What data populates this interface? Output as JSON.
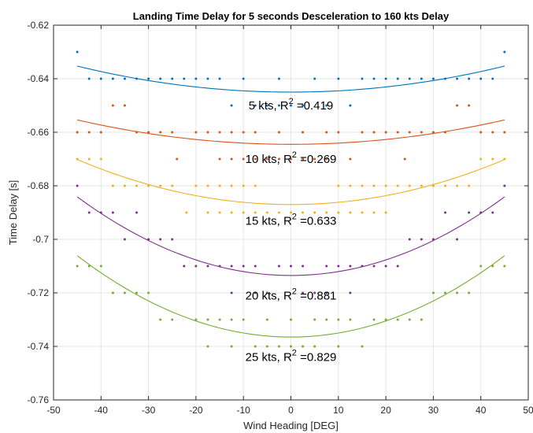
{
  "chart_data": {
    "type": "scatter",
    "title": "Landing Time Delay for 5 seconds Desceleration to 160 kts Delay",
    "xlabel": "Wind Heading [DEG]",
    "ylabel": "Time Delay [s]",
    "xlim": [
      -50,
      50
    ],
    "ylim": [
      -0.76,
      -0.62
    ],
    "xticks": [
      -50,
      -40,
      -30,
      -20,
      -10,
      0,
      10,
      20,
      30,
      40,
      50
    ],
    "xtick_labels": [
      "-50",
      "-40",
      "-30",
      "-20",
      "-10",
      "0",
      "10",
      "20",
      "30",
      "40",
      "50"
    ],
    "yticks": [
      -0.62,
      -0.64,
      -0.66,
      -0.68,
      -0.7,
      -0.72,
      -0.74,
      -0.76
    ],
    "ytick_labels": [
      "-0.62",
      "-0.64",
      "-0.66",
      "-0.68",
      "-0.7",
      "-0.72",
      "-0.74",
      "-0.76"
    ],
    "grid": true,
    "series": [
      {
        "color": "#0072BD",
        "fit": {
          "a": 4.8e-06,
          "b": 0,
          "c": -0.645,
          "xrange": [
            -45,
            45
          ]
        },
        "annotation": {
          "text": "5 kts, R",
          "sup": "2",
          "rest": " =0.419",
          "x": 0,
          "y": -0.6515
        },
        "points": [
          [
            -45,
            -0.63
          ],
          [
            45,
            -0.63
          ],
          [
            -42.5,
            -0.64
          ],
          [
            -40,
            -0.64
          ],
          [
            -37.5,
            -0.64
          ],
          [
            -35,
            -0.64
          ],
          [
            -32.5,
            -0.64
          ],
          [
            -30,
            -0.64
          ],
          [
            -27.5,
            -0.64
          ],
          [
            -25,
            -0.64
          ],
          [
            -22.5,
            -0.64
          ],
          [
            -20,
            -0.64
          ],
          [
            -17.5,
            -0.64
          ],
          [
            -15,
            -0.64
          ],
          [
            -10,
            -0.64
          ],
          [
            -2.5,
            -0.64
          ],
          [
            10,
            -0.64
          ],
          [
            15,
            -0.64
          ],
          [
            17.5,
            -0.64
          ],
          [
            20,
            -0.64
          ],
          [
            22.5,
            -0.64
          ],
          [
            25,
            -0.64
          ],
          [
            27.5,
            -0.64
          ],
          [
            30,
            -0.64
          ],
          [
            32.5,
            -0.64
          ],
          [
            35,
            -0.64
          ],
          [
            37.5,
            -0.64
          ],
          [
            40,
            -0.64
          ],
          [
            42.5,
            -0.64
          ],
          [
            5,
            -0.64
          ],
          [
            -12.5,
            -0.65
          ],
          [
            -7.5,
            -0.65
          ],
          [
            -5,
            -0.65
          ],
          [
            -2.5,
            -0.65
          ],
          [
            0,
            -0.65
          ],
          [
            2.5,
            -0.65
          ],
          [
            7.5,
            -0.65
          ],
          [
            12.5,
            -0.65
          ]
        ]
      },
      {
        "color": "#D95319",
        "fit": {
          "a": 4.5e-06,
          "b": 0,
          "c": -0.6645,
          "xrange": [
            -45,
            45
          ]
        },
        "annotation": {
          "text": "10 kts, R",
          "sup": "2",
          "rest": " =0.269",
          "x": 0,
          "y": -0.6715
        },
        "points": [
          [
            -37.5,
            -0.65
          ],
          [
            -35,
            -0.65
          ],
          [
            35,
            -0.65
          ],
          [
            37.5,
            -0.65
          ],
          [
            -45,
            -0.66
          ],
          [
            -42.5,
            -0.66
          ],
          [
            -40,
            -0.66
          ],
          [
            -32.5,
            -0.66
          ],
          [
            -30,
            -0.66
          ],
          [
            -27.5,
            -0.66
          ],
          [
            -25,
            -0.66
          ],
          [
            -20,
            -0.66
          ],
          [
            -17.5,
            -0.66
          ],
          [
            -15,
            -0.66
          ],
          [
            -12.5,
            -0.66
          ],
          [
            -10,
            -0.66
          ],
          [
            -7.5,
            -0.66
          ],
          [
            -2.5,
            -0.66
          ],
          [
            2.5,
            -0.66
          ],
          [
            7.5,
            -0.66
          ],
          [
            10,
            -0.66
          ],
          [
            15,
            -0.66
          ],
          [
            17.5,
            -0.66
          ],
          [
            20,
            -0.66
          ],
          [
            22.5,
            -0.66
          ],
          [
            25,
            -0.66
          ],
          [
            27.5,
            -0.66
          ],
          [
            30,
            -0.66
          ],
          [
            32.5,
            -0.66
          ],
          [
            40,
            -0.66
          ],
          [
            42.5,
            -0.66
          ],
          [
            45,
            -0.66
          ],
          [
            -24,
            -0.67
          ],
          [
            -15,
            -0.67
          ],
          [
            -12.5,
            -0.67
          ],
          [
            -10,
            -0.67
          ],
          [
            -7.5,
            -0.67
          ],
          [
            -5,
            -0.67
          ],
          [
            -2.5,
            -0.67
          ],
          [
            0,
            -0.67
          ],
          [
            2.5,
            -0.67
          ],
          [
            5,
            -0.67
          ],
          [
            7.5,
            -0.67
          ],
          [
            12.5,
            -0.67
          ],
          [
            24,
            -0.67
          ]
        ]
      },
      {
        "color": "#EDB120",
        "fit": {
          "a": 8.3e-06,
          "b": 0,
          "c": -0.687,
          "xrange": [
            -45,
            45
          ]
        },
        "annotation": {
          "text": "15 kts, R",
          "sup": "2",
          "rest": " =0.633",
          "x": 0,
          "y": -0.6945
        },
        "points": [
          [
            -45,
            -0.67
          ],
          [
            -42.5,
            -0.67
          ],
          [
            -40,
            -0.67
          ],
          [
            40,
            -0.67
          ],
          [
            42.5,
            -0.67
          ],
          [
            45,
            -0.67
          ],
          [
            -37.5,
            -0.68
          ],
          [
            -35,
            -0.68
          ],
          [
            -32.5,
            -0.68
          ],
          [
            -30,
            -0.68
          ],
          [
            -27.5,
            -0.68
          ],
          [
            -25,
            -0.68
          ],
          [
            -20,
            -0.68
          ],
          [
            -17.5,
            -0.68
          ],
          [
            -15,
            -0.68
          ],
          [
            -12.5,
            -0.68
          ],
          [
            -10,
            -0.68
          ],
          [
            -7.5,
            -0.68
          ],
          [
            10,
            -0.68
          ],
          [
            12.5,
            -0.68
          ],
          [
            15,
            -0.68
          ],
          [
            17.5,
            -0.68
          ],
          [
            20,
            -0.68
          ],
          [
            22.5,
            -0.68
          ],
          [
            25,
            -0.68
          ],
          [
            27.5,
            -0.68
          ],
          [
            30,
            -0.68
          ],
          [
            32.5,
            -0.68
          ],
          [
            35,
            -0.68
          ],
          [
            37.5,
            -0.68
          ],
          [
            -22,
            -0.69
          ],
          [
            -17.5,
            -0.69
          ],
          [
            -15,
            -0.69
          ],
          [
            -12.5,
            -0.69
          ],
          [
            -10,
            -0.69
          ],
          [
            -7.5,
            -0.69
          ],
          [
            -5,
            -0.69
          ],
          [
            -2.5,
            -0.69
          ],
          [
            0,
            -0.69
          ],
          [
            2.5,
            -0.69
          ],
          [
            5,
            -0.69
          ],
          [
            7.5,
            -0.69
          ],
          [
            10,
            -0.69
          ],
          [
            12.5,
            -0.69
          ],
          [
            15,
            -0.69
          ],
          [
            17.5,
            -0.69
          ],
          [
            20,
            -0.69
          ]
        ]
      },
      {
        "color": "#7E2F8E",
        "fit": {
          "a": 1.45e-05,
          "b": 0,
          "c": -0.7135,
          "xrange": [
            -45,
            45
          ]
        },
        "annotation": {
          "text": "20 kts, R",
          "sup": "2",
          "rest": " =0.881",
          "x": 0,
          "y": -0.7225
        },
        "points": [
          [
            -45,
            -0.68
          ],
          [
            45,
            -0.68
          ],
          [
            -42.5,
            -0.69
          ],
          [
            -40,
            -0.69
          ],
          [
            -37.5,
            -0.69
          ],
          [
            -32.5,
            -0.69
          ],
          [
            32.5,
            -0.69
          ],
          [
            37.5,
            -0.69
          ],
          [
            40,
            -0.69
          ],
          [
            42.5,
            -0.69
          ],
          [
            -35,
            -0.7
          ],
          [
            -30,
            -0.7
          ],
          [
            -27.5,
            -0.7
          ],
          [
            -25,
            -0.7
          ],
          [
            25,
            -0.7
          ],
          [
            27.5,
            -0.7
          ],
          [
            30,
            -0.7
          ],
          [
            35,
            -0.7
          ],
          [
            -22.5,
            -0.71
          ],
          [
            -20,
            -0.71
          ],
          [
            -17.5,
            -0.71
          ],
          [
            -15,
            -0.71
          ],
          [
            -12.5,
            -0.71
          ],
          [
            -10,
            -0.71
          ],
          [
            -7.5,
            -0.71
          ],
          [
            -2.5,
            -0.71
          ],
          [
            0,
            -0.71
          ],
          [
            2.5,
            -0.71
          ],
          [
            7.5,
            -0.71
          ],
          [
            10,
            -0.71
          ],
          [
            12.5,
            -0.71
          ],
          [
            15,
            -0.71
          ],
          [
            17.5,
            -0.71
          ],
          [
            20,
            -0.71
          ],
          [
            22.5,
            -0.71
          ],
          [
            -12.5,
            -0.72
          ],
          [
            -7.5,
            -0.72
          ],
          [
            -5,
            -0.72
          ],
          [
            2.5,
            -0.72
          ],
          [
            5,
            -0.72
          ],
          [
            7.5,
            -0.72
          ],
          [
            12.5,
            -0.72
          ]
        ]
      },
      {
        "color": "#77AC30",
        "fit": {
          "a": 1.5e-05,
          "b": 0,
          "c": -0.7365,
          "xrange": [
            -45,
            45
          ]
        },
        "annotation": {
          "text": "25 kts, R",
          "sup": "2",
          "rest": " =0.829",
          "x": 0,
          "y": -0.7455
        },
        "points": [
          [
            -45,
            -0.71
          ],
          [
            -42.5,
            -0.71
          ],
          [
            -40,
            -0.71
          ],
          [
            40,
            -0.71
          ],
          [
            42.5,
            -0.71
          ],
          [
            45,
            -0.71
          ],
          [
            -37.5,
            -0.72
          ],
          [
            -35,
            -0.72
          ],
          [
            -32.5,
            -0.72
          ],
          [
            -30,
            -0.72
          ],
          [
            30,
            -0.72
          ],
          [
            32.5,
            -0.72
          ],
          [
            35,
            -0.72
          ],
          [
            37.5,
            -0.72
          ],
          [
            -27.5,
            -0.73
          ],
          [
            -25,
            -0.73
          ],
          [
            -20,
            -0.73
          ],
          [
            -17.5,
            -0.73
          ],
          [
            -15,
            -0.73
          ],
          [
            -12.5,
            -0.73
          ],
          [
            -10,
            -0.73
          ],
          [
            -5,
            -0.73
          ],
          [
            0,
            -0.73
          ],
          [
            5,
            -0.73
          ],
          [
            7.5,
            -0.73
          ],
          [
            10,
            -0.73
          ],
          [
            12.5,
            -0.73
          ],
          [
            17.5,
            -0.73
          ],
          [
            20,
            -0.73
          ],
          [
            22.5,
            -0.73
          ],
          [
            25,
            -0.73
          ],
          [
            27.5,
            -0.73
          ],
          [
            -17.5,
            -0.74
          ],
          [
            -12.5,
            -0.74
          ],
          [
            -7.5,
            -0.74
          ],
          [
            -5,
            -0.74
          ],
          [
            -2.5,
            -0.74
          ],
          [
            0,
            -0.74
          ],
          [
            2.5,
            -0.74
          ],
          [
            5,
            -0.74
          ],
          [
            10,
            -0.74
          ],
          [
            15,
            -0.74
          ]
        ]
      }
    ]
  }
}
